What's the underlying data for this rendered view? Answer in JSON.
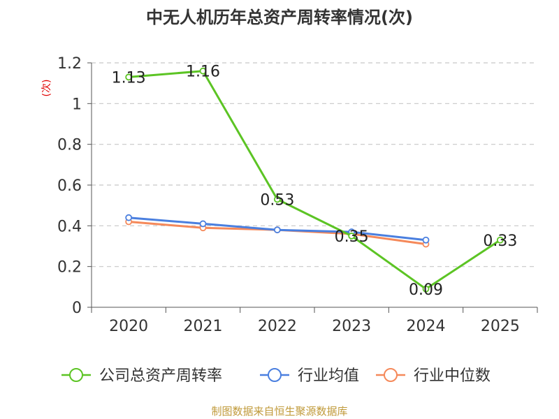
{
  "chart_data": {
    "type": "line",
    "title": "中无人机历年总资产周转率情况(次)",
    "ylabel": "(次)",
    "xlabel": "",
    "categories": [
      "2020",
      "2021",
      "2022",
      "2023",
      "2024",
      "2025"
    ],
    "ylim": [
      0,
      1.2
    ],
    "yticks": [
      "0",
      "0.2",
      "0.4",
      "0.6",
      "0.8",
      "1",
      "1.2"
    ],
    "grid": true,
    "legend_position": "bottom",
    "series": [
      {
        "name": "公司总资产周转率",
        "color": "#5cc424",
        "values": [
          1.13,
          1.16,
          0.53,
          0.35,
          0.09,
          0.33
        ],
        "labels": [
          "1.13",
          "1.16",
          "0.53",
          "0.35",
          "0.09",
          "0.33"
        ]
      },
      {
        "name": "行业均值",
        "color": "#4a7fdf",
        "values": [
          0.44,
          0.41,
          0.38,
          0.37,
          0.33,
          null
        ]
      },
      {
        "name": "行业中位数",
        "color": "#f5895a",
        "values": [
          0.42,
          0.39,
          0.38,
          0.36,
          0.31,
          null
        ]
      }
    ],
    "source": "制图数据来自恒生聚源数据库"
  }
}
